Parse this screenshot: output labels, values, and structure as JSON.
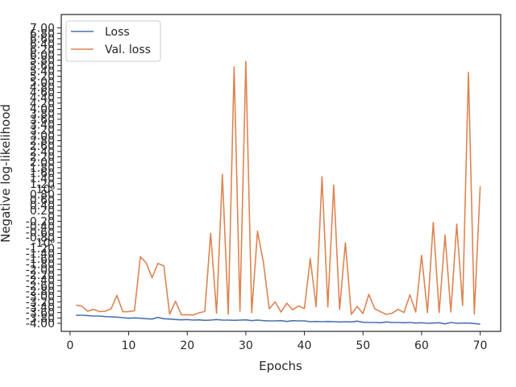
{
  "chart_data": {
    "type": "line",
    "xlabel": "Epochs",
    "ylabel": "Negative log-likelihood",
    "xlim": [
      -1.5,
      73.5
    ],
    "ylim": [
      -4.3,
      7.5
    ],
    "x_ticks": [
      0,
      10,
      20,
      30,
      40,
      50,
      60,
      70
    ],
    "y_tick_labels": [
      "-4.00",
      "-3.80",
      "-3.60",
      "-3.40",
      "-3.20",
      "-3.00",
      "-2.80",
      "-2.60",
      "-2.40",
      "-2.20",
      "-2.00",
      "-1.80",
      "-1.60",
      "-1.40",
      "-1.20",
      "-10⁰",
      "-0.80",
      "-0.60",
      "-0.40",
      "-0.20",
      "0",
      "0.20",
      "0.40",
      "0.60",
      "0.80",
      "10⁰",
      "1.20",
      "1.40",
      "1.60",
      "1.80",
      "2.00",
      "2.20",
      "2.40",
      "2.60",
      "2.80",
      "3.00",
      "3.20",
      "3.40",
      "3.60",
      "3.80",
      "4.00",
      "4.20",
      "4.40",
      "4.60",
      "4.80",
      "5.00",
      "5.20",
      "5.40",
      "5.60",
      "5.80",
      "6.00",
      "6.20",
      "6.40",
      "6.60",
      "6.80",
      "7.00"
    ],
    "grid": false,
    "legend": "upper left",
    "series": [
      {
        "name": "Loss",
        "color": "#4c72b0",
        "x": [
          1,
          2,
          3,
          4,
          5,
          6,
          7,
          8,
          9,
          10,
          11,
          12,
          13,
          14,
          15,
          16,
          17,
          18,
          19,
          20,
          21,
          22,
          23,
          24,
          25,
          26,
          27,
          28,
          29,
          30,
          31,
          32,
          33,
          34,
          35,
          36,
          37,
          38,
          39,
          40,
          41,
          42,
          43,
          44,
          45,
          46,
          47,
          48,
          49,
          50,
          51,
          52,
          53,
          54,
          55,
          56,
          57,
          58,
          59,
          60,
          61,
          62,
          63,
          64,
          65,
          66,
          67,
          68,
          69,
          70
        ],
        "y": [
          -3.7,
          -3.7,
          -3.71,
          -3.73,
          -3.73,
          -3.75,
          -3.76,
          -3.77,
          -3.79,
          -3.81,
          -3.8,
          -3.81,
          -3.83,
          -3.84,
          -3.78,
          -3.83,
          -3.84,
          -3.86,
          -3.87,
          -3.86,
          -3.88,
          -3.87,
          -3.89,
          -3.88,
          -3.86,
          -3.88,
          -3.88,
          -3.89,
          -3.88,
          -3.87,
          -3.9,
          -3.88,
          -3.9,
          -3.91,
          -3.91,
          -3.9,
          -3.93,
          -3.9,
          -3.91,
          -3.91,
          -3.94,
          -3.93,
          -3.94,
          -3.93,
          -3.94,
          -3.95,
          -3.94,
          -3.95,
          -3.92,
          -3.96,
          -3.97,
          -3.97,
          -3.98,
          -3.95,
          -3.97,
          -3.97,
          -3.98,
          -3.97,
          -3.99,
          -3.98,
          -4.0,
          -3.99,
          -3.98,
          -4.02,
          -3.97,
          -4.0,
          -3.99,
          -3.99,
          -4.01,
          -4.03
        ]
      },
      {
        "name": "Val. loss",
        "color": "#dd8452",
        "x": [
          1,
          2,
          3,
          4,
          5,
          6,
          7,
          8,
          9,
          10,
          11,
          12,
          13,
          14,
          15,
          16,
          17,
          18,
          19,
          20,
          21,
          22,
          23,
          24,
          25,
          26,
          27,
          28,
          29,
          30,
          31,
          32,
          33,
          34,
          35,
          36,
          37,
          38,
          39,
          40,
          41,
          42,
          43,
          44,
          45,
          46,
          47,
          48,
          49,
          50,
          51,
          52,
          53,
          54,
          55,
          56,
          57,
          58,
          59,
          60,
          61,
          62,
          63,
          64,
          65,
          66,
          67,
          68,
          69,
          70
        ],
        "y": [
          -3.32,
          -3.36,
          -3.55,
          -3.48,
          -3.56,
          -3.55,
          -3.46,
          -2.96,
          -3.57,
          -3.56,
          -3.53,
          -1.52,
          -1.75,
          -2.3,
          -1.77,
          -1.86,
          -3.66,
          -3.18,
          -3.68,
          -3.68,
          -3.69,
          -3.61,
          -3.56,
          -0.65,
          -3.62,
          1.55,
          -3.66,
          5.55,
          -3.55,
          5.75,
          -3.61,
          -0.57,
          -1.73,
          -3.46,
          -3.2,
          -3.58,
          -3.25,
          -3.5,
          -3.35,
          -3.45,
          -1.59,
          -3.38,
          1.46,
          -3.39,
          1.15,
          -3.48,
          -1.0,
          -3.67,
          -3.37,
          -3.64,
          -2.92,
          -3.46,
          -3.57,
          -3.67,
          -3.62,
          -3.48,
          -3.6,
          -2.94,
          -3.58,
          -1.47,
          -3.6,
          -0.24,
          -3.6,
          -0.71,
          -3.58,
          -0.31,
          -3.34,
          5.35,
          -3.65,
          1.1
        ]
      }
    ]
  }
}
